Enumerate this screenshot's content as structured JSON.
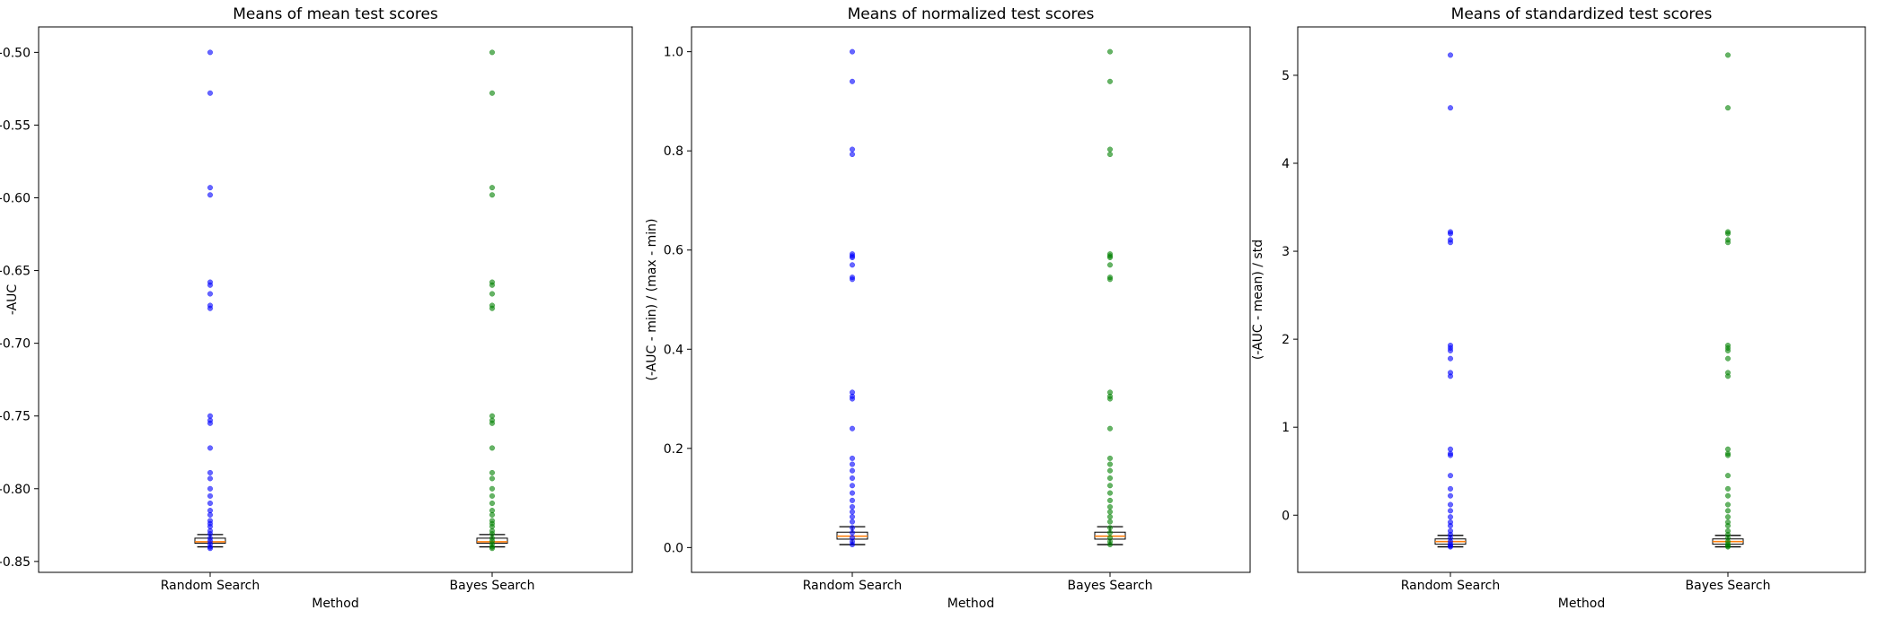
{
  "chart_data": [
    {
      "type": "box",
      "title": "Means of mean test scores",
      "xlabel": "Method",
      "ylabel": "-AUC",
      "ylim": [
        -0.8575,
        -0.4825
      ],
      "yticks": [
        -0.85,
        -0.8,
        -0.75,
        -0.7,
        -0.65,
        -0.6,
        -0.55,
        -0.5
      ],
      "ytick_labels": [
        "-0.85",
        "-0.80",
        "-0.75",
        "-0.70",
        "-0.65",
        "-0.60",
        "-0.55",
        "-0.50"
      ],
      "categories": [
        "Random Search",
        "Bayes Search"
      ],
      "boxes": [
        {
          "whislo": -0.84,
          "q1": -0.8375,
          "med": -0.8365,
          "q3": -0.834,
          "whishi": -0.8315
        },
        {
          "whislo": -0.84,
          "q1": -0.8375,
          "med": -0.8365,
          "q3": -0.834,
          "whishi": -0.8315
        }
      ],
      "series": [
        {
          "color": "#0000ff",
          "values": [
            -0.5,
            -0.528,
            -0.593,
            -0.598,
            -0.658,
            -0.66,
            -0.666,
            -0.674,
            -0.676,
            -0.75,
            -0.753,
            -0.755,
            -0.772,
            -0.789,
            -0.793,
            -0.8,
            -0.805,
            -0.81,
            -0.815,
            -0.818,
            -0.822,
            -0.824,
            -0.826,
            -0.829,
            -0.831,
            -0.834,
            -0.836,
            -0.838,
            -0.84,
            -0.841
          ]
        },
        {
          "color": "#008000",
          "values": [
            -0.5,
            -0.528,
            -0.593,
            -0.598,
            -0.658,
            -0.66,
            -0.666,
            -0.674,
            -0.676,
            -0.75,
            -0.753,
            -0.755,
            -0.772,
            -0.789,
            -0.793,
            -0.8,
            -0.805,
            -0.81,
            -0.815,
            -0.818,
            -0.822,
            -0.824,
            -0.826,
            -0.829,
            -0.831,
            -0.834,
            -0.836,
            -0.838,
            -0.84,
            -0.841
          ]
        }
      ]
    },
    {
      "type": "box",
      "title": "Means of normalized test scores",
      "xlabel": "Method",
      "ylabel": "(-AUC - min) / (max - min)",
      "ylim": [
        -0.05,
        1.05
      ],
      "yticks": [
        0.0,
        0.2,
        0.4,
        0.6,
        0.8,
        1.0
      ],
      "ytick_labels": [
        "0.0",
        "0.2",
        "0.4",
        "0.6",
        "0.8",
        "1.0"
      ],
      "categories": [
        "Random Search",
        "Bayes Search"
      ],
      "boxes": [
        {
          "whislo": 0.006,
          "q1": 0.017,
          "med": 0.023,
          "q3": 0.031,
          "whishi": 0.042
        },
        {
          "whislo": 0.006,
          "q1": 0.017,
          "med": 0.023,
          "q3": 0.031,
          "whishi": 0.042
        }
      ],
      "series": [
        {
          "color": "#0000ff",
          "values": [
            1.0,
            0.94,
            0.803,
            0.793,
            0.592,
            0.588,
            0.585,
            0.57,
            0.545,
            0.541,
            0.313,
            0.305,
            0.3,
            0.24,
            0.18,
            0.168,
            0.155,
            0.14,
            0.125,
            0.11,
            0.095,
            0.082,
            0.072,
            0.062,
            0.052,
            0.04,
            0.03,
            0.02,
            0.012,
            0.006
          ]
        },
        {
          "color": "#008000",
          "values": [
            1.0,
            0.94,
            0.803,
            0.793,
            0.592,
            0.588,
            0.585,
            0.57,
            0.545,
            0.541,
            0.313,
            0.305,
            0.3,
            0.24,
            0.18,
            0.168,
            0.155,
            0.14,
            0.125,
            0.11,
            0.095,
            0.082,
            0.072,
            0.062,
            0.052,
            0.04,
            0.03,
            0.02,
            0.012,
            0.006
          ]
        }
      ]
    },
    {
      "type": "box",
      "title": "Means of standardized test scores",
      "xlabel": "Method",
      "ylabel": "(-AUC - mean) / std",
      "ylim": [
        -0.65,
        5.55
      ],
      "yticks": [
        0,
        1,
        2,
        3,
        4,
        5
      ],
      "ytick_labels": [
        "0",
        "1",
        "2",
        "3",
        "4",
        "5"
      ],
      "categories": [
        "Random Search",
        "Bayes Search"
      ],
      "boxes": [
        {
          "whislo": -0.36,
          "q1": -0.33,
          "med": -0.3,
          "q3": -0.27,
          "whishi": -0.23
        },
        {
          "whislo": -0.36,
          "q1": -0.33,
          "med": -0.3,
          "q3": -0.27,
          "whishi": -0.23
        }
      ],
      "series": [
        {
          "color": "#0000ff",
          "values": [
            5.23,
            4.63,
            3.22,
            3.2,
            3.13,
            3.1,
            1.93,
            1.9,
            1.87,
            1.78,
            1.62,
            1.58,
            0.75,
            0.7,
            0.68,
            0.45,
            0.3,
            0.22,
            0.12,
            0.05,
            -0.02,
            -0.08,
            -0.12,
            -0.18,
            -0.22,
            -0.26,
            -0.3,
            -0.33,
            -0.35,
            -0.36
          ]
        },
        {
          "color": "#008000",
          "values": [
            5.23,
            4.63,
            3.22,
            3.2,
            3.13,
            3.1,
            1.93,
            1.9,
            1.87,
            1.78,
            1.62,
            1.58,
            0.75,
            0.7,
            0.68,
            0.45,
            0.3,
            0.22,
            0.12,
            0.05,
            -0.02,
            -0.08,
            -0.12,
            -0.18,
            -0.22,
            -0.26,
            -0.3,
            -0.33,
            -0.35,
            -0.36
          ]
        }
      ]
    }
  ]
}
